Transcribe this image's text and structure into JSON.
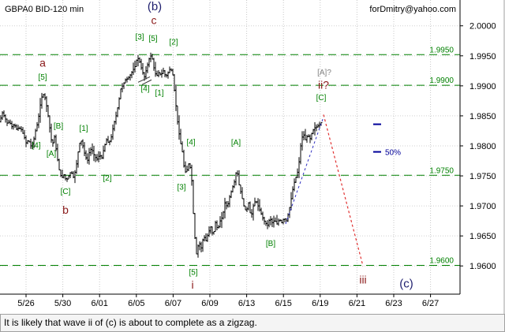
{
  "header": {
    "instrument": "GBPA0 BID-120 min",
    "author": "forDmitry@yahoo.com"
  },
  "caption": "It is likely that wave ii of (c) is about to complete as a zigzag.",
  "colors": {
    "background": "#ffffff",
    "candles": "#000000",
    "levels": "#008000",
    "wave_red": "#8b1a1a",
    "wave_green": "#008000",
    "wave_gray": "#808080",
    "wave_navy": "#1f1f6e",
    "forecast_red": "#e03030",
    "trend_blue": "#3030c0",
    "marker_blue": "#000099"
  },
  "chart_data": {
    "type": "candlestick",
    "x_tick_labels": [
      "5/26",
      "5/30",
      "6/01",
      "6/05",
      "6/07",
      "6/09",
      "6/13",
      "6/15",
      "6/19",
      "6/21",
      "6/23",
      "6/27"
    ],
    "y_tick_labels": [
      "2.0000",
      "1.9950",
      "1.9900",
      "1.9850",
      "1.9800",
      "1.9750",
      "1.9700",
      "1.9650",
      "1.9600"
    ],
    "ylim": [
      1.9553,
      2.0043
    ],
    "grid": true,
    "levels": [
      {
        "label": "1.9950",
        "value": 1.9952
      },
      {
        "label": "1.9900",
        "value": 1.9901
      },
      {
        "label": "1.9750",
        "value": 1.9751
      },
      {
        "label": "1.9600",
        "value": 1.9601
      }
    ],
    "price_path": [
      {
        "t": 0,
        "p": 1.9842
      },
      {
        "t": 3,
        "p": 1.9855
      },
      {
        "t": 6,
        "p": 1.9848
      },
      {
        "t": 9,
        "p": 1.9838
      },
      {
        "t": 12,
        "p": 1.984
      },
      {
        "t": 15,
        "p": 1.9832
      },
      {
        "t": 18,
        "p": 1.9836
      },
      {
        "t": 21,
        "p": 1.9828
      },
      {
        "t": 24,
        "p": 1.983
      },
      {
        "t": 27,
        "p": 1.9827
      },
      {
        "t": 30,
        "p": 1.9818
      },
      {
        "t": 33,
        "p": 1.9805
      },
      {
        "t": 36,
        "p": 1.981
      },
      {
        "t": 39,
        "p": 1.98
      },
      {
        "t": 42,
        "p": 1.9805
      },
      {
        "t": 45,
        "p": 1.9825
      },
      {
        "t": 48,
        "p": 1.984
      },
      {
        "t": 51,
        "p": 1.9868
      },
      {
        "t": 54,
        "p": 1.9888
      },
      {
        "t": 57,
        "p": 1.988
      },
      {
        "t": 60,
        "p": 1.986
      },
      {
        "t": 63,
        "p": 1.983
      },
      {
        "t": 66,
        "p": 1.98
      },
      {
        "t": 69,
        "p": 1.9815
      },
      {
        "t": 72,
        "p": 1.9785
      },
      {
        "t": 75,
        "p": 1.976
      },
      {
        "t": 78,
        "p": 1.9746
      },
      {
        "t": 81,
        "p": 1.9752
      },
      {
        "t": 84,
        "p": 1.9742
      },
      {
        "t": 87,
        "p": 1.975
      },
      {
        "t": 90,
        "p": 1.9758
      },
      {
        "t": 93,
        "p": 1.9748
      },
      {
        "t": 96,
        "p": 1.976
      },
      {
        "t": 99,
        "p": 1.979
      },
      {
        "t": 102,
        "p": 1.9812
      },
      {
        "t": 105,
        "p": 1.98
      },
      {
        "t": 108,
        "p": 1.9782
      },
      {
        "t": 111,
        "p": 1.9776
      },
      {
        "t": 114,
        "p": 1.9795
      },
      {
        "t": 117,
        "p": 1.9792
      },
      {
        "t": 120,
        "p": 1.9782
      },
      {
        "t": 123,
        "p": 1.9778
      },
      {
        "t": 126,
        "p": 1.9785
      },
      {
        "t": 129,
        "p": 1.978
      },
      {
        "t": 132,
        "p": 1.9798
      },
      {
        "t": 135,
        "p": 1.981
      },
      {
        "t": 138,
        "p": 1.9804
      },
      {
        "t": 141,
        "p": 1.9815
      },
      {
        "t": 144,
        "p": 1.9835
      },
      {
        "t": 147,
        "p": 1.985
      },
      {
        "t": 150,
        "p": 1.987
      },
      {
        "t": 153,
        "p": 1.9895
      },
      {
        "t": 156,
        "p": 1.9902
      },
      {
        "t": 159,
        "p": 1.991
      },
      {
        "t": 162,
        "p": 1.9912
      },
      {
        "t": 165,
        "p": 1.9918
      },
      {
        "t": 168,
        "p": 1.9925
      },
      {
        "t": 171,
        "p": 1.9932
      },
      {
        "t": 174,
        "p": 1.9948
      },
      {
        "t": 177,
        "p": 1.994
      },
      {
        "t": 180,
        "p": 1.9925
      },
      {
        "t": 183,
        "p": 1.9915
      },
      {
        "t": 186,
        "p": 1.993
      },
      {
        "t": 189,
        "p": 1.9945
      },
      {
        "t": 192,
        "p": 1.9952
      },
      {
        "t": 195,
        "p": 1.993
      },
      {
        "t": 198,
        "p": 1.9915
      },
      {
        "t": 201,
        "p": 1.9922
      },
      {
        "t": 204,
        "p": 1.9918
      },
      {
        "t": 207,
        "p": 1.9925
      },
      {
        "t": 210,
        "p": 1.9915
      },
      {
        "t": 213,
        "p": 1.9922
      },
      {
        "t": 216,
        "p": 1.993
      },
      {
        "t": 219,
        "p": 1.9918
      },
      {
        "t": 222,
        "p": 1.988
      },
      {
        "t": 225,
        "p": 1.984
      },
      {
        "t": 228,
        "p": 1.981
      },
      {
        "t": 231,
        "p": 1.979
      },
      {
        "t": 234,
        "p": 1.9755
      },
      {
        "t": 237,
        "p": 1.976
      },
      {
        "t": 240,
        "p": 1.9775
      },
      {
        "t": 243,
        "p": 1.9742
      },
      {
        "t": 246,
        "p": 1.966
      },
      {
        "t": 249,
        "p": 1.962
      },
      {
        "t": 252,
        "p": 1.964
      },
      {
        "t": 255,
        "p": 1.963
      },
      {
        "t": 258,
        "p": 1.965
      },
      {
        "t": 261,
        "p": 1.9642
      },
      {
        "t": 264,
        "p": 1.9655
      },
      {
        "t": 267,
        "p": 1.9665
      },
      {
        "t": 270,
        "p": 1.965
      },
      {
        "t": 273,
        "p": 1.9672
      },
      {
        "t": 276,
        "p": 1.966
      },
      {
        "t": 279,
        "p": 1.9675
      },
      {
        "t": 282,
        "p": 1.9682
      },
      {
        "t": 285,
        "p": 1.9705
      },
      {
        "t": 288,
        "p": 1.9698
      },
      {
        "t": 291,
        "p": 1.9715
      },
      {
        "t": 294,
        "p": 1.9728
      },
      {
        "t": 297,
        "p": 1.974
      },
      {
        "t": 300,
        "p": 1.9762
      },
      {
        "t": 303,
        "p": 1.9735
      },
      {
        "t": 306,
        "p": 1.9718
      },
      {
        "t": 309,
        "p": 1.97
      },
      {
        "t": 312,
        "p": 1.969
      },
      {
        "t": 315,
        "p": 1.9705
      },
      {
        "t": 318,
        "p": 1.968
      },
      {
        "t": 321,
        "p": 1.97
      },
      {
        "t": 324,
        "p": 1.971
      },
      {
        "t": 327,
        "p": 1.97
      },
      {
        "t": 330,
        "p": 1.969
      },
      {
        "t": 333,
        "p": 1.968
      },
      {
        "t": 336,
        "p": 1.9672
      },
      {
        "t": 339,
        "p": 1.9668
      },
      {
        "t": 342,
        "p": 1.968
      },
      {
        "t": 345,
        "p": 1.9672
      },
      {
        "t": 348,
        "p": 1.9676
      },
      {
        "t": 351,
        "p": 1.967
      },
      {
        "t": 354,
        "p": 1.9678
      },
      {
        "t": 357,
        "p": 1.9672
      },
      {
        "t": 360,
        "p": 1.968
      },
      {
        "t": 363,
        "p": 1.9675
      },
      {
        "t": 366,
        "p": 1.969
      },
      {
        "t": 369,
        "p": 1.9712
      },
      {
        "t": 372,
        "p": 1.9735
      },
      {
        "t": 375,
        "p": 1.9748
      },
      {
        "t": 378,
        "p": 1.976
      },
      {
        "t": 381,
        "p": 1.98
      },
      {
        "t": 384,
        "p": 1.9822
      },
      {
        "t": 387,
        "p": 1.981
      },
      {
        "t": 390,
        "p": 1.9818
      },
      {
        "t": 393,
        "p": 1.9812
      },
      {
        "t": 396,
        "p": 1.9825
      },
      {
        "t": 399,
        "p": 1.983
      },
      {
        "t": 402,
        "p": 1.9832
      },
      {
        "t": 405,
        "p": 1.9836
      },
      {
        "t": 408,
        "p": 1.984
      }
    ],
    "wave_labels": [
      {
        "text": "a",
        "t": 54,
        "p": 1.9932,
        "color": "wave_red",
        "size": 14
      },
      {
        "text": "[5]",
        "t": 54,
        "p": 1.991,
        "color": "wave_green",
        "size": 10
      },
      {
        "text": "[B]",
        "t": 74,
        "p": 1.9829,
        "color": "wave_green",
        "size": 10
      },
      {
        "text": "[4]",
        "t": 46,
        "p": 1.9797,
        "color": "wave_green",
        "size": 10
      },
      {
        "text": "[A]",
        "t": 65,
        "p": 1.9783,
        "color": "wave_green",
        "size": 10
      },
      {
        "text": "[1]",
        "t": 106,
        "p": 1.9825,
        "color": "wave_green",
        "size": 10
      },
      {
        "text": "[2]",
        "t": 136,
        "p": 1.9742,
        "color": "wave_green",
        "size": 10
      },
      {
        "text": "[C]",
        "t": 83,
        "p": 1.972,
        "color": "wave_green",
        "size": 10
      },
      {
        "text": "b",
        "t": 83,
        "p": 1.9687,
        "color": "wave_red",
        "size": 14
      },
      {
        "text": "(b)",
        "t": 196,
        "p": 2.0026,
        "color": "wave_navy",
        "size": 15
      },
      {
        "text": "c",
        "t": 195,
        "p": 2.0003,
        "color": "wave_red",
        "size": 14
      },
      {
        "text": "[3]",
        "t": 177,
        "p": 1.9977,
        "color": "wave_green",
        "size": 10
      },
      {
        "text": "[5]",
        "t": 194,
        "p": 1.9975,
        "color": "wave_green",
        "size": 10
      },
      {
        "text": "[2]",
        "t": 220,
        "p": 1.9969,
        "color": "wave_green",
        "size": 10
      },
      {
        "text": "[4]",
        "t": 184,
        "p": 1.9891,
        "color": "wave_green",
        "size": 10
      },
      {
        "text": "[1]",
        "t": 202,
        "p": 1.9884,
        "color": "wave_green",
        "size": 10
      },
      {
        "text": "[4]",
        "t": 242,
        "p": 1.9802,
        "color": "wave_green",
        "size": 10
      },
      {
        "text": "[3]",
        "t": 230,
        "p": 1.9727,
        "color": "wave_green",
        "size": 10
      },
      {
        "text": "[5]",
        "t": 245,
        "p": 1.9585,
        "color": "wave_green",
        "size": 10
      },
      {
        "text": "i",
        "t": 244,
        "p": 1.9562,
        "color": "wave_red",
        "size": 14
      },
      {
        "text": "[A]",
        "t": 299,
        "p": 1.9801,
        "color": "wave_green",
        "size": 10
      },
      {
        "text": "[B]",
        "t": 343,
        "p": 1.9633,
        "color": "wave_green",
        "size": 10
      },
      {
        "text": "[A]?",
        "t": 411,
        "p": 1.9918,
        "color": "wave_gray",
        "size": 10
      },
      {
        "text": "ii?",
        "t": 410,
        "p": 1.9895,
        "color": "wave_red",
        "size": 14
      },
      {
        "text": "[C]",
        "t": 407,
        "p": 1.9876,
        "color": "wave_green",
        "size": 10
      },
      {
        "text": "iii",
        "t": 460,
        "p": 1.9571,
        "color": "wave_red",
        "size": 14
      },
      {
        "text": "(c)",
        "t": 515,
        "p": 1.9564,
        "color": "wave_navy",
        "size": 15
      }
    ],
    "forecast_path": [
      {
        "t": 410,
        "p": 1.9852
      },
      {
        "t": 460,
        "p": 1.96
      }
    ],
    "trend_line": [
      {
        "t": 362,
        "p": 1.967
      },
      {
        "t": 410,
        "p": 1.9848
      }
    ],
    "markers": [
      {
        "t": 478,
        "p": 1.9836,
        "label": ""
      },
      {
        "t": 478,
        "p": 1.979,
        "label": "50%"
      }
    ]
  }
}
